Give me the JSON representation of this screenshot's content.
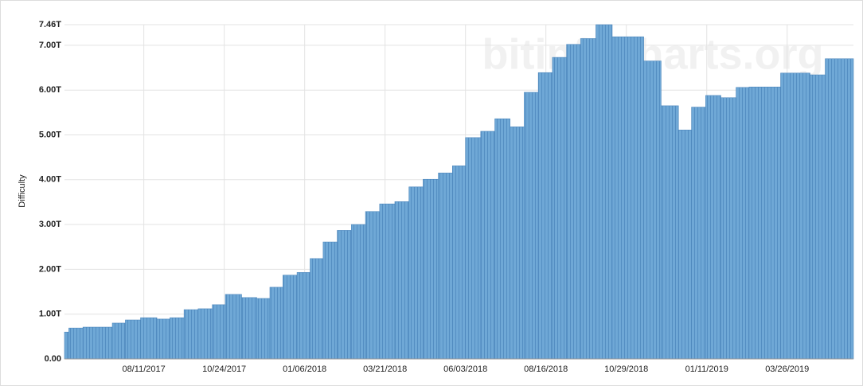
{
  "chart_data": {
    "type": "bar",
    "y_label": "Difficulty",
    "watermark": "bitinfocharts.org",
    "color": "#6fa8d6",
    "x": [
      "2017-05-30",
      "2017-06-03",
      "2017-06-16",
      "2017-07-13",
      "2017-07-25",
      "2017-08-08",
      "2017-08-23",
      "2017-09-04",
      "2017-09-17",
      "2017-09-30",
      "2017-10-13",
      "2017-10-25",
      "2017-11-09",
      "2017-11-23",
      "2017-12-05",
      "2017-12-17",
      "2017-12-30",
      "2018-01-11",
      "2018-01-23",
      "2018-02-05",
      "2018-02-18",
      "2018-03-03",
      "2018-03-16",
      "2018-03-30",
      "2018-04-12",
      "2018-04-25",
      "2018-05-09",
      "2018-05-22",
      "2018-06-03",
      "2018-06-17",
      "2018-06-30",
      "2018-07-14",
      "2018-07-27",
      "2018-08-09",
      "2018-08-22",
      "2018-09-04",
      "2018-09-17",
      "2018-10-01",
      "2018-10-16",
      "2018-11-14",
      "2018-11-30",
      "2018-12-16",
      "2018-12-28",
      "2019-01-10",
      "2019-01-24",
      "2019-02-07",
      "2019-02-19",
      "2019-03-20",
      "2019-04-16",
      "2019-04-30"
    ],
    "values": [
      0.6,
      0.69,
      0.71,
      0.8,
      0.87,
      0.92,
      0.89,
      0.92,
      1.1,
      1.12,
      1.21,
      1.44,
      1.37,
      1.35,
      1.6,
      1.87,
      1.93,
      2.24,
      2.61,
      2.87,
      3.0,
      3.29,
      3.46,
      3.51,
      3.84,
      4.01,
      4.15,
      4.31,
      4.94,
      5.08,
      5.36,
      5.18,
      5.95,
      6.39,
      6.73,
      7.02,
      7.15,
      7.46,
      7.19,
      6.65,
      5.65,
      5.11,
      5.62,
      5.88,
      5.83,
      6.06,
      6.07,
      6.38,
      6.34,
      6.7
    ],
    "xlim": [
      "2017-05-30",
      "2019-05-26"
    ],
    "xticks": [
      {
        "value": "2017-08-11",
        "label": "08/11/2017"
      },
      {
        "value": "2017-10-24",
        "label": "10/24/2017"
      },
      {
        "value": "2018-01-06",
        "label": "01/06/2018"
      },
      {
        "value": "2018-03-21",
        "label": "03/21/2018"
      },
      {
        "value": "2018-06-03",
        "label": "06/03/2018"
      },
      {
        "value": "2018-08-16",
        "label": "08/16/2018"
      },
      {
        "value": "2018-10-29",
        "label": "10/29/2018"
      },
      {
        "value": "2019-01-11",
        "label": "01/11/2019"
      },
      {
        "value": "2019-03-26",
        "label": "03/26/2019"
      }
    ],
    "ylim": [
      0,
      7.46
    ],
    "yticks": [
      {
        "value": 0,
        "label": "0.00"
      },
      {
        "value": 1,
        "label": "1.00T"
      },
      {
        "value": 2,
        "label": "2.00T"
      },
      {
        "value": 3,
        "label": "3.00T"
      },
      {
        "value": 4,
        "label": "4.00T"
      },
      {
        "value": 5,
        "label": "5.00T"
      },
      {
        "value": 6,
        "label": "6.00T"
      },
      {
        "value": 7,
        "label": "7.00T"
      },
      {
        "value": 7.46,
        "label": "7.46T"
      }
    ],
    "grid": true
  }
}
